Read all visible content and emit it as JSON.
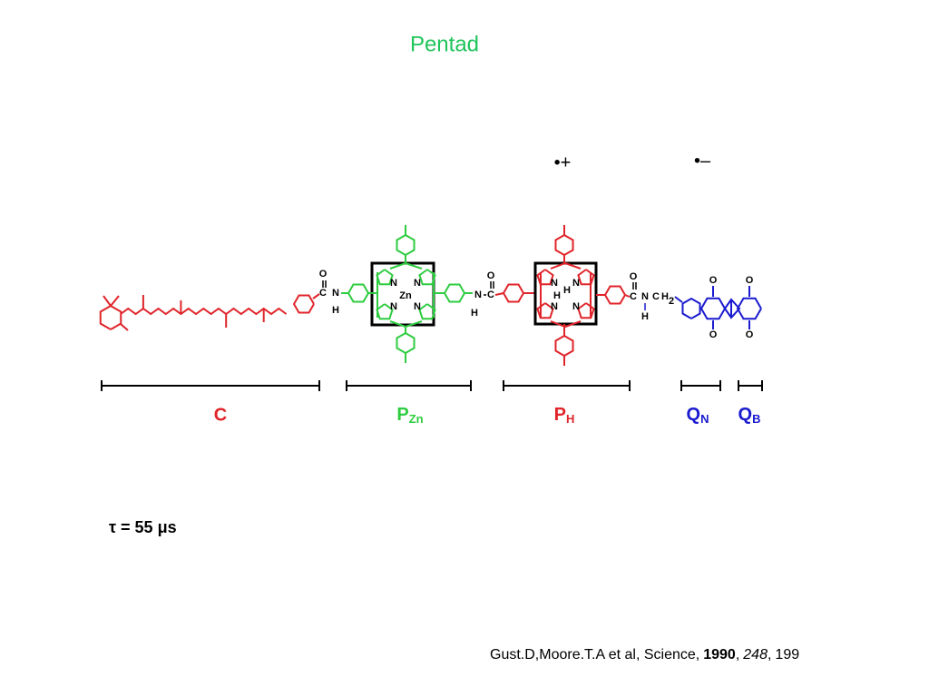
{
  "title": "Pentad",
  "radicals": [
    "•+",
    "•–"
  ],
  "segments": [
    {
      "label": "C"
    },
    {
      "label": "P",
      "subscript": "Zn"
    },
    {
      "label": "P",
      "subscript": "H"
    },
    {
      "label": "Q",
      "subscript": "N"
    },
    {
      "label": "Q",
      "subscript": "B"
    }
  ],
  "structure": {
    "atoms": [
      "O",
      "C",
      "N",
      "H",
      "N",
      "N",
      "Zn",
      "N",
      "N",
      "N",
      "H",
      "C",
      "O",
      "N",
      "H",
      "N",
      "N",
      "H",
      "N",
      "O",
      "C",
      "N",
      "C",
      "H",
      "2",
      "H",
      "O",
      "O",
      "O",
      "O"
    ]
  },
  "lifetime": "τ = 55 μs",
  "citation": [
    "Gust.D,Moore.T.A et al, Science,",
    "1990",
    ",",
    "248",
    ",",
    "199"
  ]
}
